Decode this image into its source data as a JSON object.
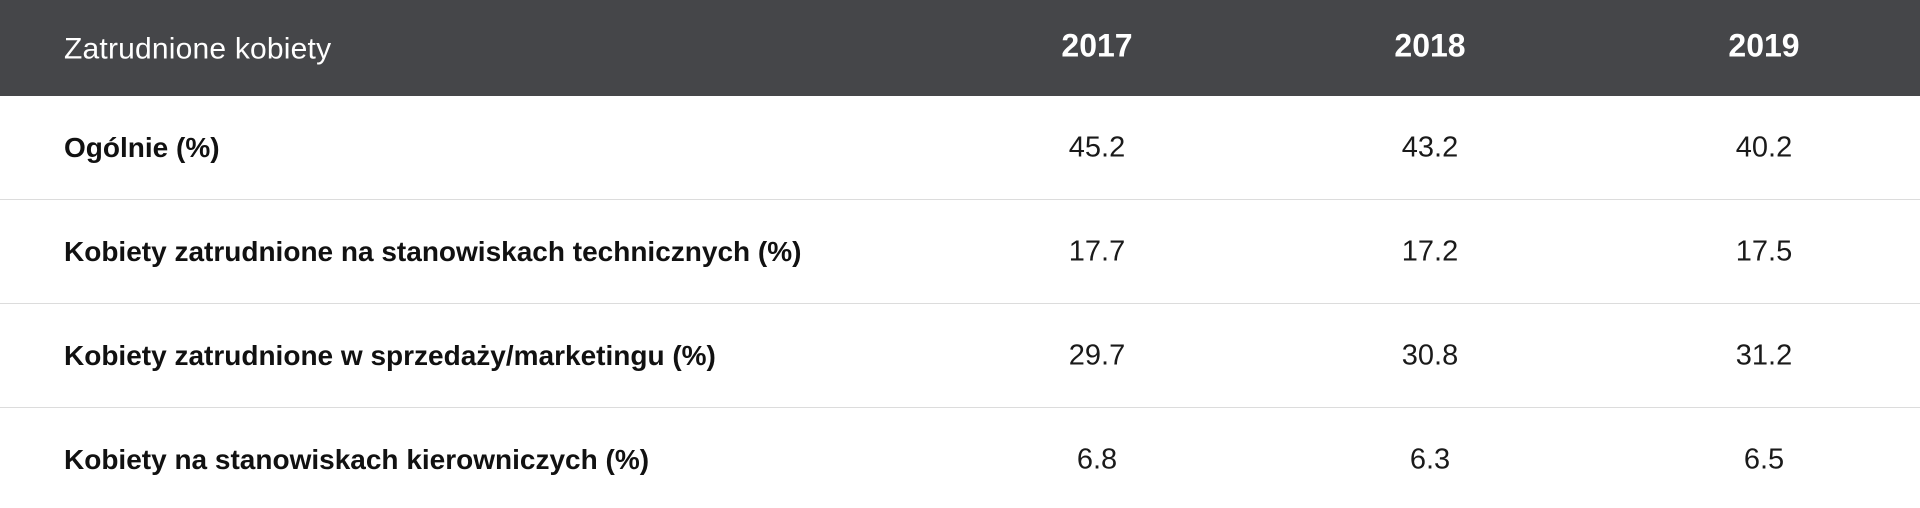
{
  "chart_data": {
    "type": "table",
    "columns": [
      "Zatrudnione kobiety",
      "2017",
      "2018",
      "2019"
    ],
    "rows": [
      {
        "label": "Ogólnie (%)",
        "values": [
          "45.2",
          "43.2",
          "40.2"
        ]
      },
      {
        "label": "Kobiety zatrudnione na stanowiskach technicznych (%)",
        "values": [
          "17.7",
          "17.2",
          "17.5"
        ]
      },
      {
        "label": "Kobiety zatrudnione w sprzedaży/marketingu (%)",
        "values": [
          "29.7",
          "30.8",
          "31.2"
        ]
      },
      {
        "label": "Kobiety na stanowiskach kierowniczych (%)",
        "values": [
          "6.8",
          "6.3",
          "6.5"
        ]
      }
    ]
  },
  "colors": {
    "header_bg": "#454649",
    "header_text": "#ffffff",
    "divider": "#dcdcdc"
  }
}
